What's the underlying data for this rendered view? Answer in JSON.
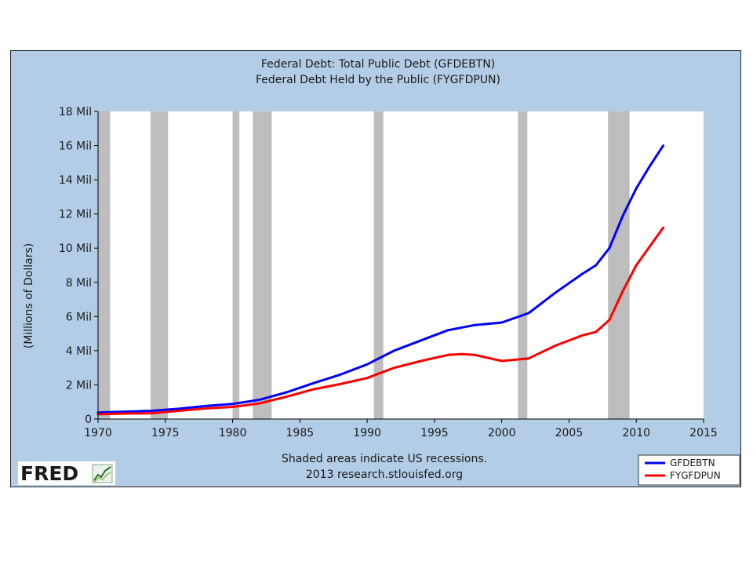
{
  "chart_data": {
    "type": "line",
    "title": "Federal Debt: Total Public Debt (GFDEBTN)",
    "subtitle": "Federal Debt Held by the Public (FYGFDPUN)",
    "ylabel": "(Millions of Dollars)",
    "xlabel": "",
    "xlim": [
      1970,
      2015
    ],
    "ylim": [
      0,
      18000000
    ],
    "x_ticks": [
      1970,
      1975,
      1980,
      1985,
      1990,
      1995,
      2000,
      2005,
      2010,
      2015
    ],
    "x_tick_labels": [
      "1970",
      "1975",
      "1980",
      "1985",
      "1990",
      "1995",
      "2000",
      "2005",
      "2010",
      "2015"
    ],
    "y_ticks": [
      0,
      2000000,
      4000000,
      6000000,
      8000000,
      10000000,
      12000000,
      14000000,
      16000000,
      18000000
    ],
    "y_tick_labels": [
      "0",
      "2 Mil",
      "4 Mil",
      "6 Mil",
      "8 Mil",
      "10 Mil",
      "12 Mil",
      "14 Mil",
      "16 Mil",
      "18 Mil"
    ],
    "grid": false,
    "legend_position": "bottom-right",
    "recessions": [
      [
        1969.9,
        1970.9
      ],
      [
        1973.9,
        1975.2
      ],
      [
        1980.0,
        1980.5
      ],
      [
        1981.5,
        1982.9
      ],
      [
        1990.5,
        1991.2
      ],
      [
        2001.2,
        2001.9
      ],
      [
        2007.9,
        2009.5
      ]
    ],
    "series": [
      {
        "name": "GFDEBTN",
        "color": "#0000ff",
        "points": [
          [
            1970,
            380000
          ],
          [
            1972,
            430000
          ],
          [
            1974,
            480000
          ],
          [
            1976,
            600000
          ],
          [
            1978,
            760000
          ],
          [
            1980,
            880000
          ],
          [
            1982,
            1130000
          ],
          [
            1984,
            1560000
          ],
          [
            1986,
            2100000
          ],
          [
            1988,
            2600000
          ],
          [
            1990,
            3200000
          ],
          [
            1992,
            4000000
          ],
          [
            1994,
            4600000
          ],
          [
            1996,
            5200000
          ],
          [
            1998,
            5500000
          ],
          [
            2000,
            5650000
          ],
          [
            2002,
            6200000
          ],
          [
            2004,
            7400000
          ],
          [
            2006,
            8500000
          ],
          [
            2007,
            9000000
          ],
          [
            2008,
            10000000
          ],
          [
            2009,
            11900000
          ],
          [
            2010,
            13500000
          ],
          [
            2011,
            14800000
          ],
          [
            2012,
            16000000
          ]
        ]
      },
      {
        "name": "FYGFDPUN",
        "color": "#ff0000",
        "points": [
          [
            1970,
            280000
          ],
          [
            1972,
            320000
          ],
          [
            1974,
            340000
          ],
          [
            1976,
            480000
          ],
          [
            1978,
            620000
          ],
          [
            1980,
            710000
          ],
          [
            1982,
            920000
          ],
          [
            1984,
            1310000
          ],
          [
            1986,
            1740000
          ],
          [
            1988,
            2050000
          ],
          [
            1990,
            2400000
          ],
          [
            1992,
            3000000
          ],
          [
            1994,
            3400000
          ],
          [
            1996,
            3750000
          ],
          [
            1997,
            3800000
          ],
          [
            1998,
            3750000
          ],
          [
            2000,
            3400000
          ],
          [
            2002,
            3550000
          ],
          [
            2004,
            4300000
          ],
          [
            2006,
            4900000
          ],
          [
            2007,
            5100000
          ],
          [
            2008,
            5800000
          ],
          [
            2009,
            7500000
          ],
          [
            2010,
            9000000
          ],
          [
            2011,
            10100000
          ],
          [
            2012,
            11200000
          ]
        ]
      }
    ],
    "footer_line1": "Shaded areas indicate US recessions.",
    "footer_line2": "2013 research.stlouisfed.org"
  },
  "logo": {
    "text": "FRED"
  },
  "colors": {
    "frame_background": "#b3cde6",
    "plot_background": "#ffffff",
    "recession_shade": "#bdbdbd"
  }
}
